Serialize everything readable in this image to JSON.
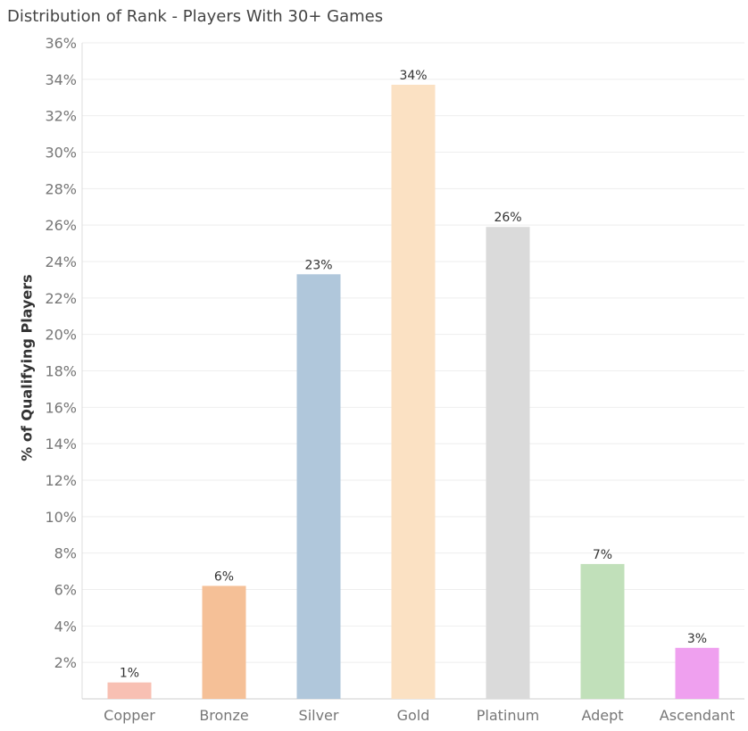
{
  "chart_data": {
    "type": "bar",
    "title": "Distribution of Rank - Players With 30+ Games",
    "ylabel": "% of Qualifying Players",
    "xlabel": "",
    "ylim": [
      0,
      36
    ],
    "yticks": [
      "2%",
      "4%",
      "6%",
      "8%",
      "10%",
      "12%",
      "14%",
      "16%",
      "18%",
      "20%",
      "22%",
      "24%",
      "26%",
      "28%",
      "30%",
      "32%",
      "34%",
      "36%"
    ],
    "categories": [
      "Copper",
      "Bronze",
      "Silver",
      "Gold",
      "Platinum",
      "Adept",
      "Ascendant"
    ],
    "values": [
      0.9,
      6.2,
      23.3,
      33.7,
      25.9,
      7.4,
      2.8
    ],
    "data_labels": [
      "1%",
      "6%",
      "23%",
      "34%",
      "26%",
      "7%",
      "3%"
    ],
    "colors": [
      "#F8C0B3",
      "#F5C097",
      "#B0C7DB",
      "#FBE1C3",
      "#DADADA",
      "#C1E0BA",
      "#EFA0EF"
    ],
    "grid": true
  }
}
